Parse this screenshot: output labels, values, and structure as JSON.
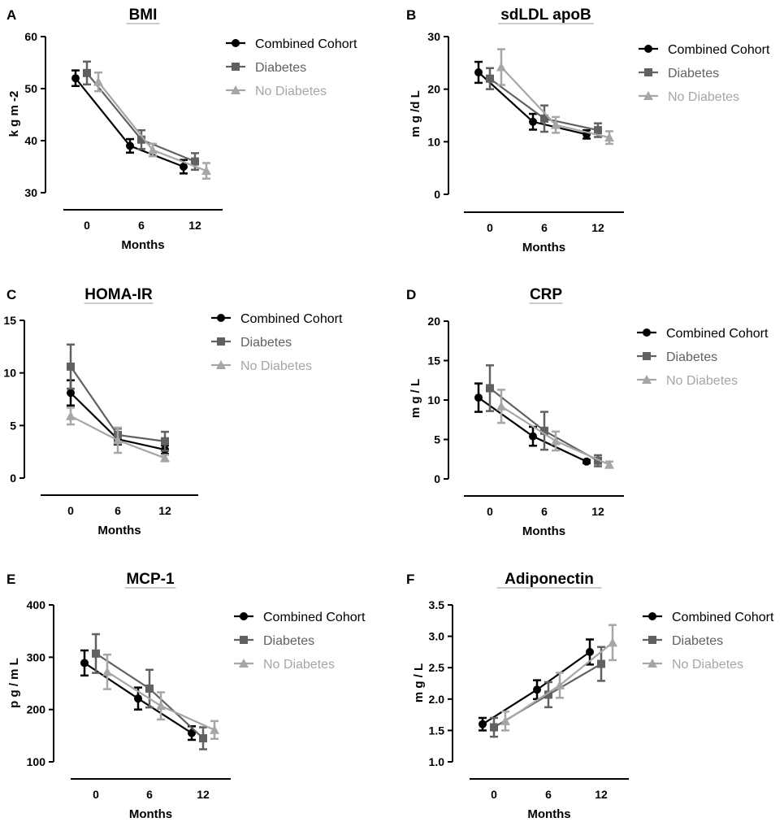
{
  "colors": {
    "Combined Cohort": "#000000",
    "Diabetes": "#616161",
    "No Diabetes": "#a6a6a6"
  },
  "markers": {
    "Combined Cohort": "circle",
    "Diabetes": "square",
    "No Diabetes": "triangle"
  },
  "chart_data": [
    {
      "letter": "A",
      "type": "line",
      "title": "BMI",
      "xlabel": "Months",
      "ylabel": "k g m -2",
      "categories": [
        0,
        6,
        12
      ],
      "ylim": [
        30,
        60
      ],
      "yticks": [
        30,
        40,
        50,
        60
      ],
      "series": [
        {
          "name": "Combined Cohort",
          "values": [
            52,
            39,
            35
          ],
          "errors": [
            1.5,
            1.3,
            1.3
          ]
        },
        {
          "name": "Diabetes",
          "values": [
            53,
            40.2,
            36
          ],
          "errors": [
            2.2,
            1.8,
            1.6
          ]
        },
        {
          "name": "No Diabetes",
          "values": [
            51.3,
            38.2,
            34.2
          ],
          "errors": [
            1.8,
            1.2,
            1.5
          ]
        }
      ]
    },
    {
      "letter": "B",
      "type": "line",
      "title": "sdLDL apoB",
      "xlabel": "Months",
      "ylabel": "m g /d L",
      "categories": [
        0,
        6,
        12
      ],
      "ylim": [
        0,
        30
      ],
      "yticks": [
        0,
        10,
        20,
        30
      ],
      "series": [
        {
          "name": "Combined Cohort",
          "values": [
            23.2,
            13.8,
            11.4
          ],
          "errors": [
            2.0,
            1.5,
            0.8
          ]
        },
        {
          "name": "Diabetes",
          "values": [
            22,
            14.4,
            12.2
          ],
          "errors": [
            2.0,
            2.5,
            1.3
          ]
        },
        {
          "name": "No Diabetes",
          "values": [
            24.2,
            13.2,
            10.8
          ],
          "errors": [
            3.4,
            1.5,
            1.2
          ]
        }
      ]
    },
    {
      "letter": "C",
      "type": "line",
      "title": "HOMA-IR",
      "xlabel": "Months",
      "ylabel": "",
      "categories": [
        0,
        6,
        12
      ],
      "ylim": [
        0,
        15
      ],
      "yticks": [
        0,
        5,
        10,
        15
      ],
      "series": [
        {
          "name": "Combined Cohort",
          "values": [
            8.1,
            3.7,
            2.7
          ],
          "errors": [
            1.2,
            0.5,
            0.4
          ]
        },
        {
          "name": "Diabetes",
          "values": [
            10.6,
            4.1,
            3.5
          ],
          "errors": [
            2.1,
            0.6,
            0.9
          ]
        },
        {
          "name": "No Diabetes",
          "values": [
            5.9,
            3.6,
            1.9
          ],
          "errors": [
            0.8,
            1.2,
            0.3
          ]
        }
      ]
    },
    {
      "letter": "D",
      "type": "line",
      "title": "CRP",
      "xlabel": "Months",
      "ylabel": "m g / L",
      "categories": [
        0,
        6,
        12
      ],
      "ylim": [
        0,
        20
      ],
      "yticks": [
        0,
        5,
        10,
        15,
        20
      ],
      "series": [
        {
          "name": "Combined Cohort",
          "values": [
            10.3,
            5.4,
            2.2
          ],
          "errors": [
            1.8,
            1.2,
            0.2
          ]
        },
        {
          "name": "Diabetes",
          "values": [
            11.5,
            6.1,
            2.3
          ],
          "errors": [
            2.9,
            2.4,
            0.7
          ]
        },
        {
          "name": "No Diabetes",
          "values": [
            9.2,
            4.8,
            1.8
          ],
          "errors": [
            2.1,
            1.2,
            0.4
          ]
        }
      ]
    },
    {
      "letter": "E",
      "type": "line",
      "title": "MCP-1",
      "xlabel": "Months",
      "ylabel": "p g / m L",
      "categories": [
        0,
        6,
        12
      ],
      "ylim": [
        100,
        400
      ],
      "yticks": [
        100,
        200,
        300,
        400
      ],
      "series": [
        {
          "name": "Combined Cohort",
          "values": [
            289,
            221,
            155
          ],
          "errors": [
            24,
            21,
            13
          ]
        },
        {
          "name": "Diabetes",
          "values": [
            307,
            240,
            145
          ],
          "errors": [
            37,
            36,
            21
          ]
        },
        {
          "name": "No Diabetes",
          "values": [
            272,
            207,
            161
          ],
          "errors": [
            33,
            26,
            17
          ]
        }
      ]
    },
    {
      "letter": "F",
      "type": "line",
      "title": "Adiponectin",
      "xlabel": "Months",
      "ylabel": "m g / L",
      "categories": [
        0,
        6,
        12
      ],
      "ylim": [
        1.0,
        3.5
      ],
      "yticks": [
        1.0,
        1.5,
        2.0,
        2.5,
        3.0,
        3.5
      ],
      "series": [
        {
          "name": "Combined Cohort",
          "values": [
            1.6,
            2.15,
            2.75
          ],
          "errors": [
            0.1,
            0.15,
            0.2
          ]
        },
        {
          "name": "Diabetes",
          "values": [
            1.55,
            2.07,
            2.56
          ],
          "errors": [
            0.15,
            0.2,
            0.27
          ]
        },
        {
          "name": "No Diabetes",
          "values": [
            1.65,
            2.22,
            2.9
          ],
          "errors": [
            0.15,
            0.2,
            0.28
          ]
        }
      ]
    }
  ]
}
